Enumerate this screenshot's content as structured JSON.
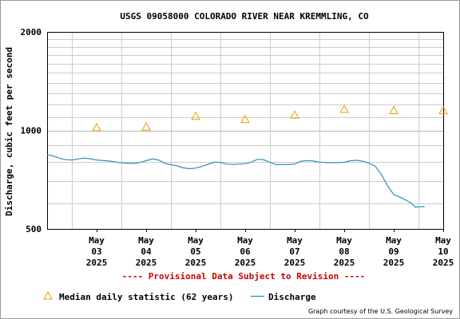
{
  "chart_data": {
    "type": "line",
    "title": "USGS 09058000 COLORADO RIVER NEAR KREMMLING, CO",
    "ylabel": "Discharge, cubic feet per second",
    "y_scale": "log",
    "ylim": [
      500,
      2000
    ],
    "y_ticks": [
      "500",
      "1000",
      "2000"
    ],
    "xlim": [
      "2025-05-02T12:00",
      "2025-05-10T12:00"
    ],
    "x_ticks": [
      {
        "day": "2025-05-03",
        "lines": [
          "May",
          "03",
          "2025"
        ]
      },
      {
        "day": "2025-05-04",
        "lines": [
          "May",
          "04",
          "2025"
        ]
      },
      {
        "day": "2025-05-05",
        "lines": [
          "May",
          "05",
          "2025"
        ]
      },
      {
        "day": "2025-05-06",
        "lines": [
          "May",
          "06",
          "2025"
        ]
      },
      {
        "day": "2025-05-07",
        "lines": [
          "May",
          "07",
          "2025"
        ]
      },
      {
        "day": "2025-05-08",
        "lines": [
          "May",
          "08",
          "2025"
        ]
      },
      {
        "day": "2025-05-09",
        "lines": [
          "May",
          "09",
          "2025"
        ]
      },
      {
        "day": "2025-05-10",
        "lines": [
          "May",
          "10",
          "2025"
        ]
      }
    ],
    "grid": true,
    "provisional_note": "---- Provisional Data Subject to Revision ----",
    "series": [
      {
        "name": "Median daily statistic (62 years)",
        "style": "triangle-markers",
        "color": "#e8a000",
        "points": [
          {
            "x": "2025-05-03",
            "y": 1020
          },
          {
            "x": "2025-05-04",
            "y": 1025
          },
          {
            "x": "2025-05-05",
            "y": 1105
          },
          {
            "x": "2025-05-06",
            "y": 1080
          },
          {
            "x": "2025-05-07",
            "y": 1115
          },
          {
            "x": "2025-05-08",
            "y": 1160
          },
          {
            "x": "2025-05-09",
            "y": 1150
          },
          {
            "x": "2025-05-10",
            "y": 1150
          }
        ]
      },
      {
        "name": "Discharge",
        "style": "line",
        "color": "#2a8fbd",
        "points": [
          {
            "x": "2025-05-02T12:00",
            "y": 843
          },
          {
            "x": "2025-05-02T15:00",
            "y": 835
          },
          {
            "x": "2025-05-02T18:00",
            "y": 822
          },
          {
            "x": "2025-05-02T21:00",
            "y": 814
          },
          {
            "x": "2025-05-03T00:00",
            "y": 812
          },
          {
            "x": "2025-05-03T03:00",
            "y": 818
          },
          {
            "x": "2025-05-03T06:00",
            "y": 823
          },
          {
            "x": "2025-05-03T09:00",
            "y": 819
          },
          {
            "x": "2025-05-03T12:00",
            "y": 812
          },
          {
            "x": "2025-05-03T18:00",
            "y": 806
          },
          {
            "x": "2025-05-04T00:00",
            "y": 796
          },
          {
            "x": "2025-05-04T06:00",
            "y": 792
          },
          {
            "x": "2025-05-04T09:00",
            "y": 798
          },
          {
            "x": "2025-05-04T12:00",
            "y": 808
          },
          {
            "x": "2025-05-04T15:00",
            "y": 818
          },
          {
            "x": "2025-05-04T18:00",
            "y": 812
          },
          {
            "x": "2025-05-04T21:00",
            "y": 793
          },
          {
            "x": "2025-05-05T00:00",
            "y": 786
          },
          {
            "x": "2025-05-05T03:00",
            "y": 779
          },
          {
            "x": "2025-05-05T06:00",
            "y": 768
          },
          {
            "x": "2025-05-05T09:00",
            "y": 764
          },
          {
            "x": "2025-05-05T12:00",
            "y": 767
          },
          {
            "x": "2025-05-05T15:00",
            "y": 776
          },
          {
            "x": "2025-05-05T18:00",
            "y": 788
          },
          {
            "x": "2025-05-05T21:00",
            "y": 800
          },
          {
            "x": "2025-05-06T00:00",
            "y": 798
          },
          {
            "x": "2025-05-06T03:00",
            "y": 789
          },
          {
            "x": "2025-05-06T06:00",
            "y": 787
          },
          {
            "x": "2025-05-06T12:00",
            "y": 791
          },
          {
            "x": "2025-05-06T15:00",
            "y": 800
          },
          {
            "x": "2025-05-06T18:00",
            "y": 816
          },
          {
            "x": "2025-05-06T21:00",
            "y": 813
          },
          {
            "x": "2025-05-07T00:00",
            "y": 799
          },
          {
            "x": "2025-05-07T03:00",
            "y": 786
          },
          {
            "x": "2025-05-07T09:00",
            "y": 786
          },
          {
            "x": "2025-05-07T12:00",
            "y": 789
          },
          {
            "x": "2025-05-07T15:00",
            "y": 805
          },
          {
            "x": "2025-05-07T18:00",
            "y": 809
          },
          {
            "x": "2025-05-07T21:00",
            "y": 806
          },
          {
            "x": "2025-05-08T00:00",
            "y": 800
          },
          {
            "x": "2025-05-08T06:00",
            "y": 796
          },
          {
            "x": "2025-05-08T12:00",
            "y": 799
          },
          {
            "x": "2025-05-08T15:00",
            "y": 808
          },
          {
            "x": "2025-05-08T18:00",
            "y": 810
          },
          {
            "x": "2025-05-08T21:00",
            "y": 805
          },
          {
            "x": "2025-05-09T00:00",
            "y": 794
          },
          {
            "x": "2025-05-09T03:00",
            "y": 778
          },
          {
            "x": "2025-05-09T06:00",
            "y": 733
          },
          {
            "x": "2025-05-09T09:00",
            "y": 677
          },
          {
            "x": "2025-05-09T12:00",
            "y": 637
          },
          {
            "x": "2025-05-09T15:00",
            "y": 625
          },
          {
            "x": "2025-05-09T18:00",
            "y": 612
          },
          {
            "x": "2025-05-09T21:00",
            "y": 596
          },
          {
            "x": "2025-05-09T22:30",
            "y": 582
          },
          {
            "x": "2025-05-10T00:00",
            "y": 584
          },
          {
            "x": "2025-05-10T03:00",
            "y": 585
          }
        ]
      }
    ],
    "legend_position": "bottom-left",
    "credit": "Graph courtesy of the U.S. Geological Survey"
  }
}
